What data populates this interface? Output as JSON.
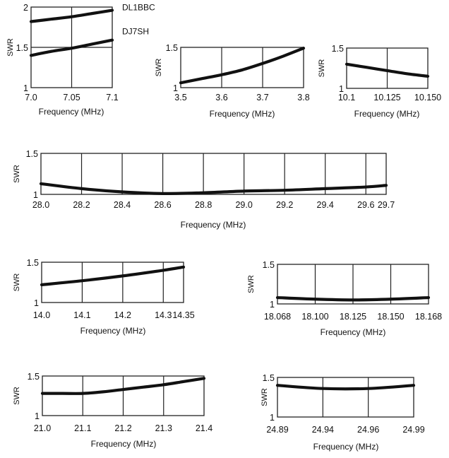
{
  "chart_data": [
    {
      "type": "line",
      "title": "",
      "xlabel": "Frequency (MHz)",
      "ylabel": "SWR",
      "xlim": [
        7.0,
        7.1
      ],
      "ylim": [
        1,
        2
      ],
      "xticks": [
        7.0,
        7.05,
        7.1
      ],
      "xtick_labels": [
        "7.0",
        "7.05",
        "7.1"
      ],
      "yticks": [
        1,
        1.5,
        2
      ],
      "ytick_labels": [
        "1",
        "1.5",
        "2"
      ],
      "y_gridlines": [
        1.5
      ],
      "grid": true,
      "legend_position": "right (direct line labels)",
      "series": [
        {
          "name": "DL1BBC",
          "x": [
            7.0,
            7.025,
            7.05,
            7.075,
            7.1
          ],
          "y": [
            1.82,
            1.85,
            1.88,
            1.92,
            1.96
          ]
        },
        {
          "name": "DJ7SH",
          "x": [
            7.0,
            7.025,
            7.05,
            7.075,
            7.1
          ],
          "y": [
            1.4,
            1.45,
            1.49,
            1.54,
            1.59
          ]
        }
      ]
    },
    {
      "type": "line",
      "title": "",
      "xlabel": "Frequency (MHz)",
      "ylabel": "SWR",
      "xlim": [
        3.5,
        3.8
      ],
      "ylim": [
        1,
        1.5
      ],
      "xticks": [
        3.5,
        3.6,
        3.7,
        3.8
      ],
      "xtick_labels": [
        "3.5",
        "3.6",
        "3.7",
        "3.8"
      ],
      "yticks": [
        1,
        1.5
      ],
      "ytick_labels": [
        "1",
        "1.5"
      ],
      "grid": true,
      "series": [
        {
          "name": "SWR",
          "x": [
            3.5,
            3.55,
            3.6,
            3.65,
            3.7,
            3.75,
            3.8
          ],
          "y": [
            1.06,
            1.11,
            1.16,
            1.22,
            1.3,
            1.39,
            1.49
          ]
        }
      ]
    },
    {
      "type": "line",
      "title": "",
      "xlabel": "Frequency (MHz)",
      "ylabel": "SWR",
      "xlim": [
        10.1,
        10.15
      ],
      "ylim": [
        1,
        1.5
      ],
      "xticks": [
        10.1,
        10.125,
        10.15
      ],
      "xtick_labels": [
        "10.1",
        "10.125",
        "10.150"
      ],
      "yticks": [
        1,
        1.5
      ],
      "ytick_labels": [
        "1",
        "1.5"
      ],
      "grid": true,
      "series": [
        {
          "name": "SWR",
          "x": [
            10.1,
            10.1125,
            10.125,
            10.1375,
            10.15
          ],
          "y": [
            1.3,
            1.26,
            1.22,
            1.18,
            1.15
          ]
        }
      ]
    },
    {
      "type": "line",
      "title": "",
      "xlabel": "Frequency (MHz)",
      "ylabel": "SWR",
      "xlim": [
        28.0,
        29.7
      ],
      "ylim": [
        1,
        1.5
      ],
      "xticks": [
        28.0,
        28.2,
        28.4,
        28.6,
        28.8,
        29.0,
        29.2,
        29.4,
        29.6,
        29.7
      ],
      "xtick_labels": [
        "28.0",
        "28.2",
        "28.4",
        "28.6",
        "28.8",
        "29.0",
        "29.2",
        "29.4",
        "29.6",
        "29.7"
      ],
      "yticks": [
        1,
        1.5
      ],
      "ytick_labels": [
        "1",
        "1.5"
      ],
      "grid": true,
      "series": [
        {
          "name": "SWR",
          "x": [
            28.0,
            28.2,
            28.4,
            28.6,
            28.8,
            29.0,
            29.2,
            29.4,
            29.6,
            29.7
          ],
          "y": [
            1.13,
            1.07,
            1.03,
            1.01,
            1.02,
            1.04,
            1.05,
            1.07,
            1.09,
            1.11
          ]
        }
      ]
    },
    {
      "type": "line",
      "title": "",
      "xlabel": "Frequency (MHz)",
      "ylabel": "SWR",
      "xlim": [
        14.0,
        14.35
      ],
      "ylim": [
        1,
        1.5
      ],
      "xticks": [
        14.0,
        14.1,
        14.2,
        14.3,
        14.35
      ],
      "xtick_labels": [
        "14.0",
        "14.1",
        "14.2",
        "14.3",
        "14.35"
      ],
      "yticks": [
        1,
        1.5
      ],
      "ytick_labels": [
        "1",
        "1.5"
      ],
      "grid": true,
      "series": [
        {
          "name": "SWR",
          "x": [
            14.0,
            14.1,
            14.2,
            14.3,
            14.35
          ],
          "y": [
            1.22,
            1.27,
            1.33,
            1.4,
            1.44
          ]
        }
      ]
    },
    {
      "type": "line",
      "title": "",
      "xlabel": "Frequency (MHz)",
      "ylabel": "SWR",
      "xlim": [
        18.068,
        18.168
      ],
      "ylim": [
        1,
        1.5
      ],
      "xticks": [
        18.068,
        18.1,
        18.125,
        18.15,
        18.168
      ],
      "xtick_labels": [
        "18.068",
        "18.100",
        "18.125",
        "18.150",
        "18.168"
      ],
      "x_categorical_ticks": true,
      "yticks": [
        1,
        1.5
      ],
      "ytick_labels": [
        "1",
        "1.5"
      ],
      "grid": true,
      "series": [
        {
          "name": "SWR",
          "x": [
            18.068,
            18.1,
            18.125,
            18.15,
            18.168
          ],
          "y": [
            1.08,
            1.06,
            1.05,
            1.06,
            1.08
          ]
        }
      ]
    },
    {
      "type": "line",
      "title": "",
      "xlabel": "Frequency (MHz)",
      "ylabel": "SWR",
      "xlim": [
        21.0,
        21.4
      ],
      "ylim": [
        1,
        1.5
      ],
      "xticks": [
        21.0,
        21.1,
        21.2,
        21.3,
        21.4
      ],
      "xtick_labels": [
        "21.0",
        "21.1",
        "21.2",
        "21.3",
        "21.4"
      ],
      "yticks": [
        1,
        1.5
      ],
      "ytick_labels": [
        "1",
        "1.5"
      ],
      "grid": true,
      "series": [
        {
          "name": "SWR",
          "x": [
            21.0,
            21.05,
            21.1,
            21.15,
            21.2,
            21.25,
            21.3,
            21.35,
            21.4
          ],
          "y": [
            1.28,
            1.28,
            1.28,
            1.3,
            1.33,
            1.36,
            1.39,
            1.43,
            1.47
          ]
        }
      ]
    },
    {
      "type": "line",
      "title": "",
      "xlabel": "Frequency (MHz)",
      "ylabel": "SWR",
      "xlim": [
        24.89,
        24.99
      ],
      "ylim": [
        1,
        1.5
      ],
      "xticks": [
        24.89,
        24.94,
        24.96,
        24.99
      ],
      "xtick_labels": [
        "24.89",
        "24.94",
        "24.96",
        "24.99"
      ],
      "x_categorical_ticks": true,
      "yticks": [
        1,
        1.5
      ],
      "ytick_labels": [
        "1",
        "1.5"
      ],
      "grid": true,
      "series": [
        {
          "name": "SWR",
          "x": [
            24.89,
            24.94,
            24.96,
            24.99
          ],
          "y": [
            1.4,
            1.36,
            1.36,
            1.4
          ]
        }
      ]
    }
  ]
}
